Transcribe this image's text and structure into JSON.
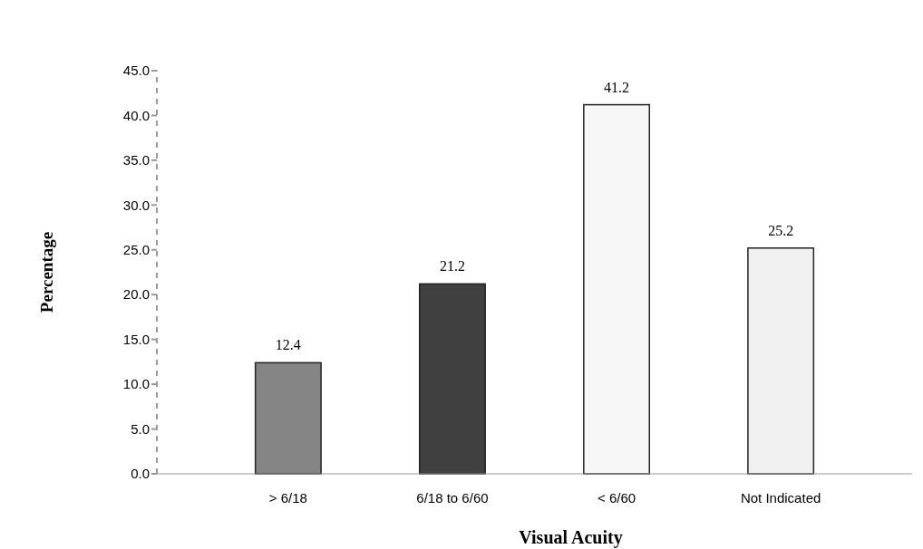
{
  "chart_data": {
    "type": "bar",
    "xlabel": "Visual Acuity",
    "ylabel": "Percentage",
    "categories": [
      "> 6/18",
      "6/18 to 6/60",
      "< 6/60",
      "Not Indicated"
    ],
    "values": [
      12.4,
      21.2,
      41.2,
      25.2
    ],
    "colors": [
      "#858585",
      "#404040",
      "#f7f7f7",
      "#f0f0f0"
    ],
    "ylim": [
      0,
      45
    ],
    "yticks": [
      {
        "value": 0,
        "label": "0.0"
      },
      {
        "value": 5,
        "label": "5.0"
      },
      {
        "value": 10,
        "label": "10.0"
      },
      {
        "value": 15,
        "label": "15.0"
      },
      {
        "value": 20,
        "label": "20.0"
      },
      {
        "value": 25,
        "label": "25.0"
      },
      {
        "value": 30,
        "label": "30.0"
      },
      {
        "value": 35,
        "label": "35.0"
      },
      {
        "value": 40,
        "label": "40.0"
      },
      {
        "value": 45,
        "label": "45.0"
      }
    ],
    "data_labels": true,
    "grid": false
  }
}
